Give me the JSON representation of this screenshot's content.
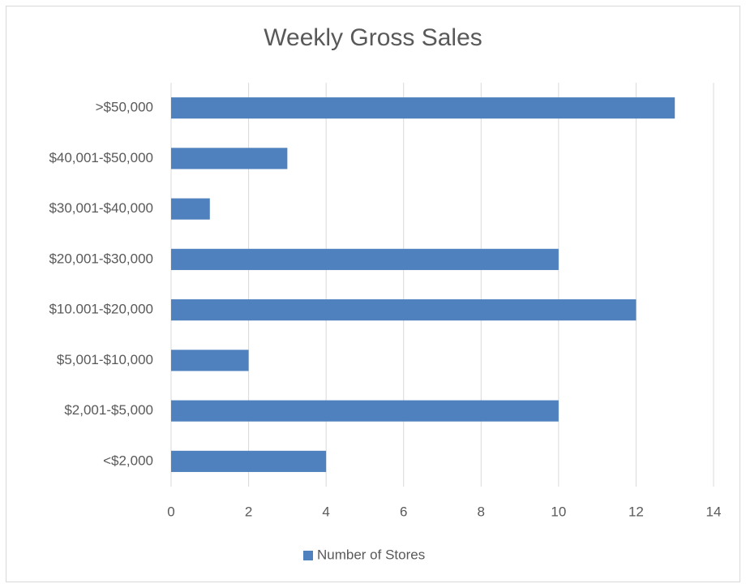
{
  "chart_data": {
    "type": "bar",
    "orientation": "horizontal",
    "title": "Weekly Gross Sales",
    "categories": [
      "<$2,000",
      "$2,001-$5,000",
      "$5,001-$10,000",
      "$10.001-$20,000",
      "$20,001-$30,000",
      "$30,001-$40,000",
      "$40,001-$50,000",
      ">$50,000"
    ],
    "series": [
      {
        "name": "Number of Stores",
        "color": "#4e81bd",
        "values": [
          4,
          10,
          2,
          12,
          10,
          1,
          3,
          13
        ]
      }
    ],
    "xlim": [
      0,
      14
    ],
    "xticks": [
      0,
      2,
      4,
      6,
      8,
      10,
      12,
      14
    ],
    "grid": true,
    "legend": "bottom"
  }
}
